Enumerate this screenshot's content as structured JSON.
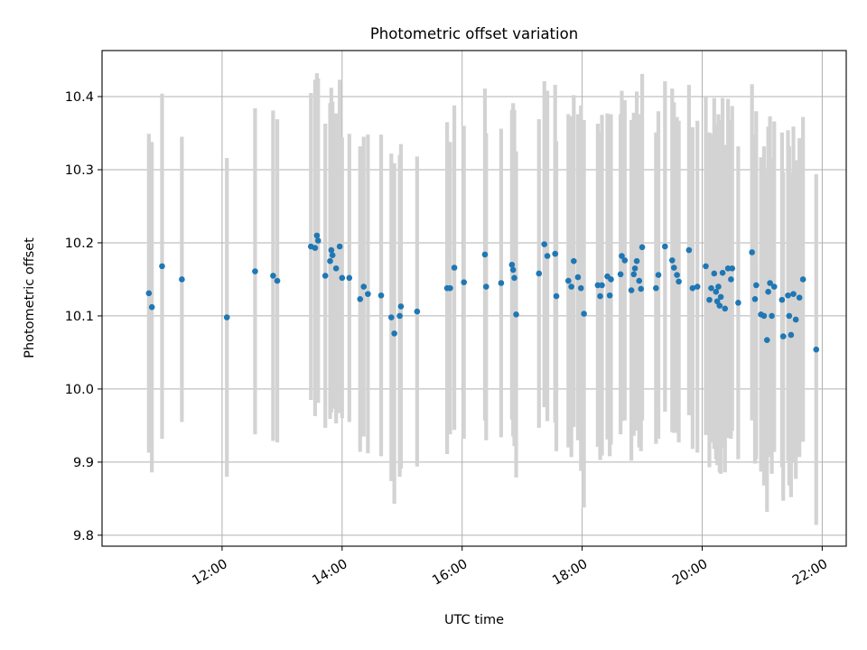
{
  "chart_data": {
    "type": "scatter",
    "title": "Photometric offset variation",
    "xlabel": "UTC time",
    "ylabel": "Photometric offset",
    "x_unit": "hours UTC",
    "xlim": [
      10.0,
      22.4
    ],
    "ylim": [
      9.785,
      10.463
    ],
    "xticks": [
      12,
      14,
      16,
      18,
      20,
      22
    ],
    "xticklabels": [
      "12:00",
      "14:00",
      "16:00",
      "18:00",
      "20:00",
      "22:00"
    ],
    "yticks": [
      9.8,
      9.9,
      10.0,
      10.1,
      10.2,
      10.3,
      10.4
    ],
    "yticklabels": [
      "9.8",
      "9.9",
      "10.0",
      "10.1",
      "10.2",
      "10.3",
      "10.4"
    ],
    "grid": true,
    "colors": {
      "points": "#1f77b4",
      "errorbars": "#d3d3d3",
      "grid": "#b0b0b0"
    },
    "series": [
      {
        "x": [
          10.78,
          10.83,
          11.0,
          11.33,
          12.08,
          12.55,
          12.85,
          12.92,
          13.48,
          13.55,
          13.58,
          13.6,
          13.72,
          13.8,
          13.82,
          13.84,
          13.9,
          13.96,
          14.0,
          14.12,
          14.3,
          14.36,
          14.43,
          14.65,
          14.82,
          14.87,
          14.96,
          14.98,
          15.25,
          15.75,
          15.8,
          15.87,
          16.03,
          16.38,
          16.4,
          16.65,
          16.83,
          16.85,
          16.87,
          16.9,
          17.28,
          17.37,
          17.42,
          17.55,
          17.57,
          17.77,
          17.82,
          17.86,
          17.93,
          17.98,
          18.03,
          18.26,
          18.3,
          18.33,
          18.42,
          18.46,
          18.48,
          18.64,
          18.66,
          18.71,
          18.82,
          18.86,
          18.88,
          18.91,
          18.95,
          18.98,
          19.0,
          19.23,
          19.27,
          19.38,
          19.5,
          19.53,
          19.58,
          19.61,
          19.78,
          19.84,
          19.92,
          20.06,
          20.12,
          20.15,
          20.2,
          20.23,
          20.25,
          20.27,
          20.29,
          20.31,
          20.34,
          20.38,
          20.43,
          20.48,
          20.5,
          20.6,
          20.83,
          20.88,
          20.9,
          20.98,
          21.03,
          21.08,
          21.1,
          21.13,
          21.16,
          21.2,
          21.33,
          21.35,
          21.43,
          21.45,
          21.48,
          21.52,
          21.56,
          21.62,
          21.68,
          21.9
        ],
        "y": [
          10.131,
          10.112,
          10.168,
          10.15,
          10.098,
          10.161,
          10.155,
          10.148,
          10.195,
          10.193,
          10.21,
          10.203,
          10.155,
          10.175,
          10.19,
          10.183,
          10.165,
          10.195,
          10.152,
          10.152,
          10.123,
          10.14,
          10.13,
          10.128,
          10.098,
          10.076,
          10.1,
          10.113,
          10.106,
          10.138,
          10.138,
          10.166,
          10.146,
          10.184,
          10.14,
          10.145,
          10.17,
          10.163,
          10.152,
          10.102,
          10.158,
          10.198,
          10.182,
          10.185,
          10.127,
          10.148,
          10.14,
          10.175,
          10.153,
          10.138,
          10.103,
          10.142,
          10.127,
          10.142,
          10.154,
          10.128,
          10.15,
          10.157,
          10.182,
          10.176,
          10.135,
          10.157,
          10.165,
          10.175,
          10.148,
          10.137,
          10.194,
          10.138,
          10.156,
          10.195,
          10.176,
          10.166,
          10.156,
          10.147,
          10.19,
          10.138,
          10.14,
          10.168,
          10.122,
          10.138,
          10.158,
          10.133,
          10.12,
          10.14,
          10.114,
          10.126,
          10.159,
          10.11,
          10.165,
          10.15,
          10.165,
          10.118,
          10.187,
          10.123,
          10.142,
          10.102,
          10.1,
          10.067,
          10.133,
          10.145,
          10.1,
          10.14,
          10.122,
          10.072,
          10.128,
          10.1,
          10.074,
          10.13,
          10.095,
          10.125,
          10.15,
          10.054
        ],
        "err": [
          0.218,
          0.226,
          0.236,
          0.195,
          0.218,
          0.223,
          0.226,
          0.221,
          0.21,
          0.23,
          0.222,
          0.222,
          0.208,
          0.216,
          0.222,
          0.21,
          0.212,
          0.228,
          0.192,
          0.197,
          0.209,
          0.205,
          0.218,
          0.22,
          0.224,
          0.233,
          0.22,
          0.222,
          0.212,
          0.227,
          0.2,
          0.222,
          0.214,
          0.227,
          0.21,
          0.211,
          0.212,
          0.228,
          0.23,
          0.223,
          0.211,
          0.223,
          0.226,
          0.231,
          0.212,
          0.228,
          0.233,
          0.227,
          0.223,
          0.25,
          0.265,
          0.221,
          0.224,
          0.233,
          0.223,
          0.22,
          0.226,
          0.219,
          0.226,
          0.219,
          0.233,
          0.221,
          0.212,
          0.232,
          0.228,
          0.222,
          0.237,
          0.213,
          0.224,
          0.226,
          0.235,
          0.226,
          0.216,
          0.22,
          0.226,
          0.22,
          0.227,
          0.231,
          0.229,
          0.211,
          0.24,
          0.229,
          0.224,
          0.236,
          0.228,
          0.242,
          0.239,
          0.224,
          0.232,
          0.218,
          0.222,
          0.214,
          0.23,
          0.225,
          0.238,
          0.215,
          0.232,
          0.235,
          0.226,
          0.228,
          0.216,
          0.226,
          0.229,
          0.225,
          0.226,
          0.232,
          0.222,
          0.229,
          0.218,
          0.218,
          0.222,
          0.24
        ]
      }
    ]
  }
}
